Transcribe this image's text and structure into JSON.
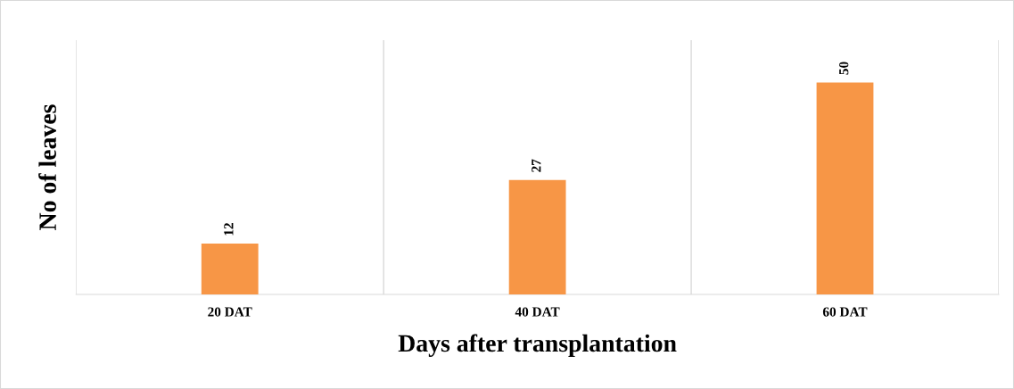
{
  "chart_data": {
    "type": "bar",
    "xlabel": "Days after transplantation",
    "ylabel": "No of leaves",
    "categories": [
      "20 DAT",
      "40 DAT",
      "60 DAT"
    ],
    "values": [
      12,
      27,
      50
    ],
    "color": "#f79646",
    "ylim": [
      0,
      60
    ],
    "tick_labels": "x",
    "grid": "x",
    "data_labels": true,
    "legend": false
  }
}
